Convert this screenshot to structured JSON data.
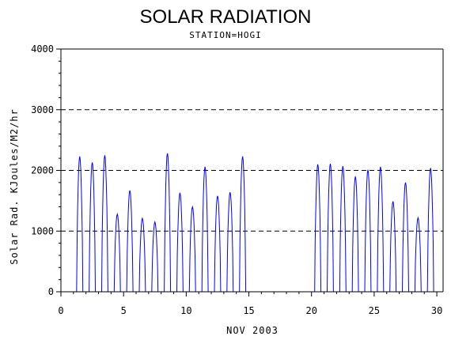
{
  "chart_data": {
    "type": "line",
    "title": "SOLAR RADIATION",
    "subtitle": "STATION=HOGI",
    "xlabel": "NOV 2003",
    "ylabel": "Solar Rad. KJoules/M2/hr",
    "xlim": [
      0,
      30.5
    ],
    "ylim": [
      0,
      4000
    ],
    "xticks": [
      0,
      5,
      10,
      15,
      20,
      25,
      30
    ],
    "yticks": [
      0,
      1000,
      2000,
      3000,
      4000
    ],
    "grid": "horizontal-dashed",
    "line_color": "#0000ff",
    "daily_peaks": [
      {
        "day": 1,
        "peak": 2230
      },
      {
        "day": 2,
        "peak": 2130
      },
      {
        "day": 3,
        "peak": 2250
      },
      {
        "day": 4,
        "peak": 1280
      },
      {
        "day": 5,
        "peak": 1670
      },
      {
        "day": 6,
        "peak": 1210
      },
      {
        "day": 7,
        "peak": 1150
      },
      {
        "day": 8,
        "peak": 2280
      },
      {
        "day": 9,
        "peak": 1630
      },
      {
        "day": 10,
        "peak": 1400
      },
      {
        "day": 11,
        "peak": 2060
      },
      {
        "day": 12,
        "peak": 1580
      },
      {
        "day": 13,
        "peak": 1640
      },
      {
        "day": 14,
        "peak": 2230
      },
      {
        "day": 20,
        "peak": 2100
      },
      {
        "day": 21,
        "peak": 2110
      },
      {
        "day": 22,
        "peak": 2070
      },
      {
        "day": 23,
        "peak": 1900
      },
      {
        "day": 24,
        "peak": 2010
      },
      {
        "day": 25,
        "peak": 2060
      },
      {
        "day": 26,
        "peak": 1490
      },
      {
        "day": 27,
        "peak": 1800
      },
      {
        "day": 28,
        "peak": 1220
      },
      {
        "day": 29,
        "peak": 2040
      }
    ],
    "missing_days": [
      15,
      16,
      17,
      18,
      19
    ]
  }
}
